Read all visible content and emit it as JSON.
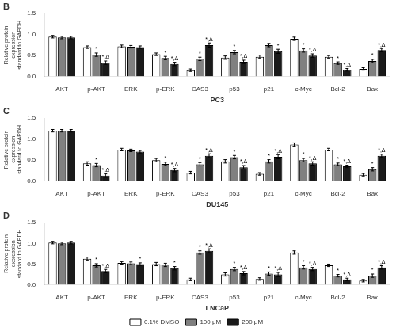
{
  "chart_data": [
    {
      "type": "bar",
      "title": "B",
      "xlabel": "PC3",
      "ylabel": "Relative protein\nexpression\nstandard to GAPDH",
      "categories": [
        "AKT",
        "p-AKT",
        "ERK",
        "p-ERK",
        "CAS3",
        "p53",
        "p21",
        "c-Myc",
        "Bcl-2",
        "Bax"
      ],
      "series": [
        {
          "name": "0.1% DMSO",
          "color": "#ffffff",
          "values": [
            0.95,
            0.7,
            0.72,
            0.53,
            0.15,
            0.45,
            0.47,
            0.9,
            0.47,
            0.18
          ],
          "errors": [
            0.03,
            0.03,
            0.03,
            0.03,
            0.03,
            0.04,
            0.04,
            0.04,
            0.03,
            0.03
          ]
        },
        {
          "name": "100 μM",
          "color": "#808080",
          "values": [
            0.93,
            0.52,
            0.71,
            0.44,
            0.42,
            0.58,
            0.75,
            0.62,
            0.32,
            0.37
          ],
          "errors": [
            0.03,
            0.04,
            0.03,
            0.04,
            0.04,
            0.04,
            0.04,
            0.04,
            0.03,
            0.04
          ]
        },
        {
          "name": "200 μM",
          "color": "#1a1a1a",
          "values": [
            0.93,
            0.33,
            0.7,
            0.3,
            0.75,
            0.35,
            0.6,
            0.5,
            0.16,
            0.63
          ],
          "errors": [
            0.03,
            0.04,
            0.03,
            0.04,
            0.05,
            0.04,
            0.05,
            0.04,
            0.03,
            0.04
          ]
        }
      ],
      "ylim": [
        0.0,
        1.5
      ],
      "yticks": [
        {
          "value": 0,
          "label": "0.0"
        },
        0.5,
        {
          "value": 1,
          "label": "1.0"
        },
        1.5
      ],
      "grid": false,
      "annotations": [
        {
          "text": "*",
          "category": "p-AKT",
          "series": "100 μM"
        },
        {
          "text": "*",
          "category": "p-ERK",
          "series": "100 μM"
        },
        {
          "text": "*",
          "category": "CAS3",
          "series": "100 μM"
        },
        {
          "text": "*",
          "category": "p53",
          "series": "100 μM"
        },
        {
          "text": "*",
          "category": "c-Myc",
          "series": "100 μM"
        },
        {
          "text": "*",
          "category": "Bcl-2",
          "series": "100 μM"
        },
        {
          "text": "*",
          "category": "Bax",
          "series": "100 μM"
        },
        {
          "text": "*,Δ",
          "category": "p-AKT",
          "series": "200 μM"
        },
        {
          "text": "*,Δ",
          "category": "p-ERK",
          "series": "200 μM"
        },
        {
          "text": "*,Δ",
          "category": "CAS3",
          "series": "200 μM"
        },
        {
          "text": "*,Δ",
          "category": "p53",
          "series": "200 μM"
        },
        {
          "text": "*",
          "category": "p21",
          "series": "200 μM"
        },
        {
          "text": "*,Δ",
          "category": "c-Myc",
          "series": "200 μM"
        },
        {
          "text": "*,Δ",
          "category": "Bcl-2",
          "series": "200 μM"
        },
        {
          "text": "*,Δ",
          "category": "Bax",
          "series": "200 μM"
        }
      ]
    },
    {
      "type": "bar",
      "title": "C",
      "xlabel": "DU145",
      "ylabel": "Relative protein\nexpression\nstandard to GAPDH",
      "categories": [
        "AKT",
        "p-AKT",
        "ERK",
        "p-ERK",
        "CAS3",
        "p53",
        "p21",
        "c-Myc",
        "Bcl-2",
        "Bax"
      ],
      "series": [
        {
          "name": "0.1% DMSO",
          "color": "#ffffff",
          "values": [
            1.2,
            0.42,
            0.75,
            0.5,
            0.2,
            0.47,
            0.17,
            0.87,
            0.75,
            0.15
          ],
          "errors": [
            0.03,
            0.04,
            0.03,
            0.04,
            0.03,
            0.04,
            0.03,
            0.04,
            0.03,
            0.03
          ]
        },
        {
          "name": "100 μM",
          "color": "#808080",
          "values": [
            1.2,
            0.38,
            0.73,
            0.41,
            0.4,
            0.57,
            0.47,
            0.5,
            0.4,
            0.28
          ],
          "errors": [
            0.03,
            0.04,
            0.03,
            0.04,
            0.04,
            0.04,
            0.04,
            0.04,
            0.03,
            0.04
          ]
        },
        {
          "name": "200 μM",
          "color": "#1a1a1a",
          "values": [
            1.2,
            0.13,
            0.7,
            0.26,
            0.6,
            0.33,
            0.58,
            0.42,
            0.35,
            0.6
          ],
          "errors": [
            0.03,
            0.04,
            0.03,
            0.04,
            0.05,
            0.04,
            0.05,
            0.04,
            0.03,
            0.04
          ]
        }
      ],
      "ylim": [
        0.0,
        1.5
      ],
      "yticks": [
        {
          "value": 0,
          "label": "0.0"
        },
        0.5,
        {
          "value": 1,
          "label": "1.0"
        },
        1.5
      ],
      "grid": false,
      "annotations": [
        {
          "text": "*",
          "category": "p-AKT",
          "series": "100 μM"
        },
        {
          "text": "*",
          "category": "p-ERK",
          "series": "100 μM"
        },
        {
          "text": "*",
          "category": "CAS3",
          "series": "100 μM"
        },
        {
          "text": "*",
          "category": "p53",
          "series": "100 μM"
        },
        {
          "text": "*",
          "category": "p21",
          "series": "100 μM"
        },
        {
          "text": "*",
          "category": "c-Myc",
          "series": "100 μM"
        },
        {
          "text": "*",
          "category": "Bcl-2",
          "series": "100 μM"
        },
        {
          "text": "*",
          "category": "Bax",
          "series": "100 μM"
        },
        {
          "text": "*,Δ",
          "category": "p-AKT",
          "series": "200 μM"
        },
        {
          "text": "*,Δ",
          "category": "p-ERK",
          "series": "200 μM"
        },
        {
          "text": "*,Δ",
          "category": "CAS3",
          "series": "200 μM"
        },
        {
          "text": "*,Δ",
          "category": "p53",
          "series": "200 μM"
        },
        {
          "text": "*,Δ",
          "category": "p21",
          "series": "200 μM"
        },
        {
          "text": "*,Δ",
          "category": "c-Myc",
          "series": "200 μM"
        },
        {
          "text": "*,Δ",
          "category": "Bcl-2",
          "series": "200 μM"
        },
        {
          "text": "*,Δ",
          "category": "Bax",
          "series": "200 μM"
        }
      ]
    },
    {
      "type": "bar",
      "title": "D",
      "xlabel": "LNCaP",
      "ylabel": "Relative protein\nexpression\nstandard to GAPDH",
      "categories": [
        "AKT",
        "p-AKT",
        "ERK",
        "p-ERK",
        "CAS3",
        "p53",
        "p21",
        "c-Myc",
        "Bcl-2",
        "Bax"
      ],
      "series": [
        {
          "name": "0.1% DMSO",
          "color": "#ffffff",
          "values": [
            1.02,
            0.63,
            0.53,
            0.5,
            0.13,
            0.25,
            0.14,
            0.78,
            0.47,
            0.1
          ],
          "errors": [
            0.03,
            0.04,
            0.03,
            0.04,
            0.03,
            0.04,
            0.03,
            0.04,
            0.03,
            0.03
          ]
        },
        {
          "name": "100 μM",
          "color": "#808080",
          "values": [
            1.0,
            0.47,
            0.52,
            0.48,
            0.78,
            0.38,
            0.27,
            0.42,
            0.22,
            0.22
          ],
          "errors": [
            0.03,
            0.04,
            0.03,
            0.04,
            0.04,
            0.04,
            0.04,
            0.04,
            0.03,
            0.04
          ]
        },
        {
          "name": "200 μM",
          "color": "#1a1a1a",
          "values": [
            1.02,
            0.33,
            0.5,
            0.4,
            0.82,
            0.28,
            0.25,
            0.38,
            0.13,
            0.42
          ],
          "errors": [
            0.03,
            0.04,
            0.03,
            0.04,
            0.05,
            0.04,
            0.05,
            0.04,
            0.03,
            0.04
          ]
        }
      ],
      "ylim": [
        0.0,
        1.5
      ],
      "yticks": [
        {
          "value": 0,
          "label": "0.0"
        },
        0.5,
        {
          "value": 1,
          "label": "1.0"
        },
        1.5
      ],
      "grid": false,
      "legend": "bottom",
      "annotations": [
        {
          "text": "*",
          "category": "p-AKT",
          "series": "100 μM"
        },
        {
          "text": "*",
          "category": "CAS3",
          "series": "100 μM"
        },
        {
          "text": "*",
          "category": "p53",
          "series": "100 μM"
        },
        {
          "text": "*",
          "category": "p21",
          "series": "100 μM"
        },
        {
          "text": "*",
          "category": "c-Myc",
          "series": "100 μM"
        },
        {
          "text": "*",
          "category": "Bcl-2",
          "series": "100 μM"
        },
        {
          "text": "*",
          "category": "Bax",
          "series": "100 μM"
        },
        {
          "text": "*,Δ",
          "category": "p-AKT",
          "series": "200 μM"
        },
        {
          "text": "*",
          "category": "ERK",
          "series": "200 μM"
        },
        {
          "text": "*",
          "category": "p-ERK",
          "series": "200 μM"
        },
        {
          "text": "*,Δ",
          "category": "CAS3",
          "series": "200 μM"
        },
        {
          "text": "*,Δ",
          "category": "p53",
          "series": "200 μM"
        },
        {
          "text": "*,Δ",
          "category": "p21",
          "series": "200 μM"
        },
        {
          "text": "*,Δ",
          "category": "c-Myc",
          "series": "200 μM"
        },
        {
          "text": "*,Δ",
          "category": "Bcl-2",
          "series": "200 μM"
        },
        {
          "text": "*,Δ",
          "category": "Bax",
          "series": "200 μM"
        }
      ]
    }
  ]
}
